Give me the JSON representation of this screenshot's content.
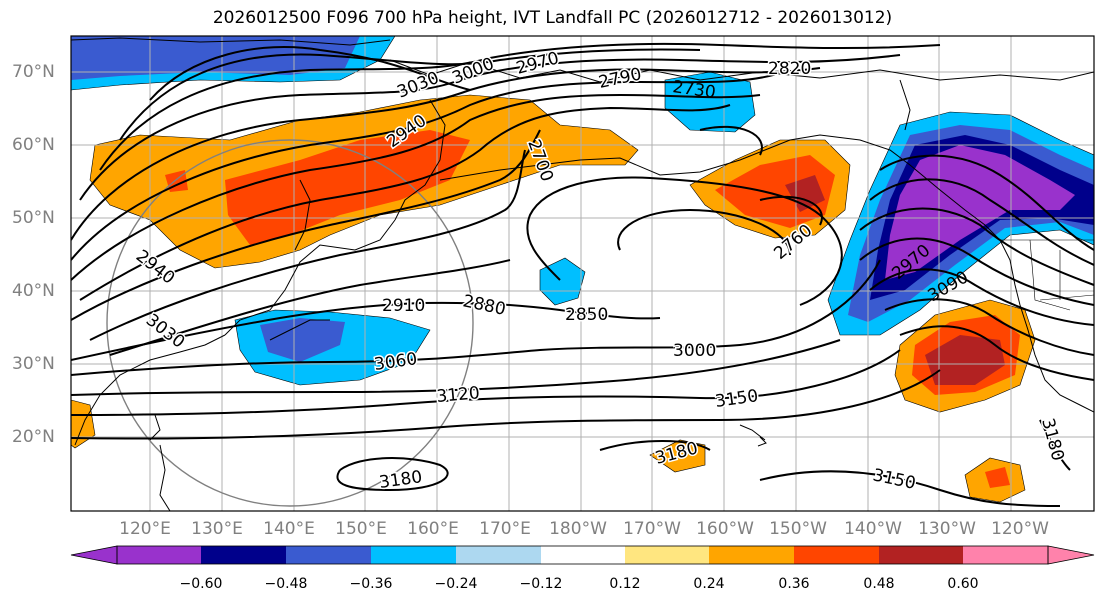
{
  "title": "2026012500 F096 700 hPa height, IVT Landfall PC (2026012712 - 2026013012)",
  "lat_labels": [
    "70°N",
    "60°N",
    "50°N",
    "40°N",
    "30°N",
    "20°N"
  ],
  "lon_labels": [
    "120°E",
    "130°E",
    "140°E",
    "150°E",
    "160°E",
    "170°E",
    "180°W",
    "170°W",
    "160°W",
    "150°W",
    "140°W",
    "130°W",
    "120°W"
  ],
  "contour_labels": [
    "3030",
    "3000",
    "2970",
    "2940",
    "2790",
    "2730",
    "2820",
    "2700",
    "2760",
    "2970",
    "3090",
    "2940",
    "3030",
    "2910",
    "2880",
    "2850",
    "3000",
    "3060",
    "3120",
    "3150",
    "3180",
    "3180",
    "3150",
    "3180"
  ],
  "colorbar": {
    "ticks": [
      "−0.60",
      "−0.48",
      "−0.36",
      "−0.24",
      "−0.12",
      "0.12",
      "0.24",
      "0.36",
      "0.48",
      "0.60"
    ],
    "colors": [
      "#9932CC",
      "#00008B",
      "#3A5BD0",
      "#00BFFF",
      "#ADD8F0",
      "#FFFFFF",
      "#FFE680",
      "#FFA500",
      "#FF4500",
      "#B22222",
      "#FF82AB"
    ]
  }
}
